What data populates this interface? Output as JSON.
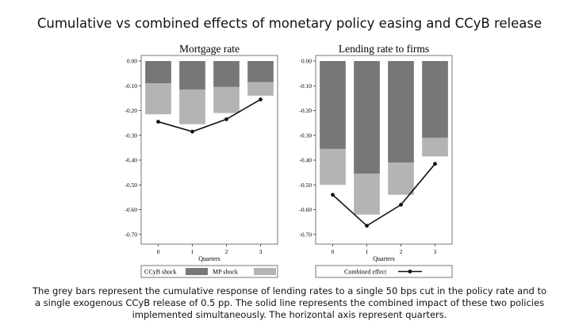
{
  "title": "Cumulative vs combined effects of monetary policy easing and CCyB release",
  "caption": "The grey bars represent the cumulative response of lending rates to a single 50 bps cut in the policy rate and to a single exogenous CCyB release of 0.5 pp. The solid line represents the combined impact of these two policies implemented simultaneously. The horizontal axis represent quarters.",
  "colors": {
    "ccyb": "#777777",
    "mp": "#b4b4b4",
    "line": "#111111"
  },
  "chart_data": [
    {
      "type": "bar",
      "title": "Mortgage rate",
      "xlabel": "Quarters",
      "ylabel": "",
      "ylim": [
        -0.72,
        0.0
      ],
      "yticks": [
        "0.00",
        "-0.10",
        "-0.20",
        "-0.30",
        "-0.40",
        "-0.50",
        "-0.60",
        "-0.70"
      ],
      "categories": [
        "0",
        "1",
        "2",
        "3"
      ],
      "stacked": true,
      "series": [
        {
          "name": "CCyB shock",
          "values": [
            -0.09,
            -0.115,
            -0.105,
            -0.085
          ]
        },
        {
          "name": "MP shock",
          "values": [
            -0.125,
            -0.14,
            -0.105,
            -0.055
          ]
        },
        {
          "name": "Combined effect",
          "kind": "line",
          "values": [
            -0.245,
            -0.285,
            -0.235,
            -0.155
          ]
        }
      ],
      "legend": {
        "position": "bottom",
        "entries": [
          "CCyB shock",
          "MP shock"
        ]
      }
    },
    {
      "type": "bar",
      "title": "Lending rate to firms",
      "xlabel": "Quarters",
      "ylabel": "",
      "ylim": [
        -0.72,
        0.0
      ],
      "yticks": [
        "0.00",
        "-0.10",
        "-0.20",
        "-0.30",
        "-0.40",
        "-0.50",
        "-0.60",
        "-0.70"
      ],
      "categories": [
        "0",
        "1",
        "2",
        "3"
      ],
      "stacked": true,
      "series": [
        {
          "name": "CCyB shock",
          "values": [
            -0.355,
            -0.455,
            -0.41,
            -0.31
          ]
        },
        {
          "name": "MP shock",
          "values": [
            -0.145,
            -0.165,
            -0.13,
            -0.075
          ]
        },
        {
          "name": "Combined effect",
          "kind": "line",
          "values": [
            -0.54,
            -0.665,
            -0.58,
            -0.415
          ]
        }
      ],
      "legend": {
        "position": "bottom",
        "entries": [
          "Combined effect"
        ]
      }
    }
  ]
}
